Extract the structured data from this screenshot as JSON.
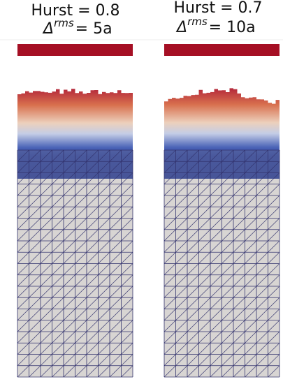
{
  "panels": [
    {
      "hurst": "Hurst = 0.8",
      "delta": "Δ",
      "sup": "rms",
      "value": "= 5a"
    },
    {
      "hurst": "Hurst = 0.7",
      "delta": "Δ",
      "sup": "rms",
      "value": "= 10a"
    }
  ]
}
